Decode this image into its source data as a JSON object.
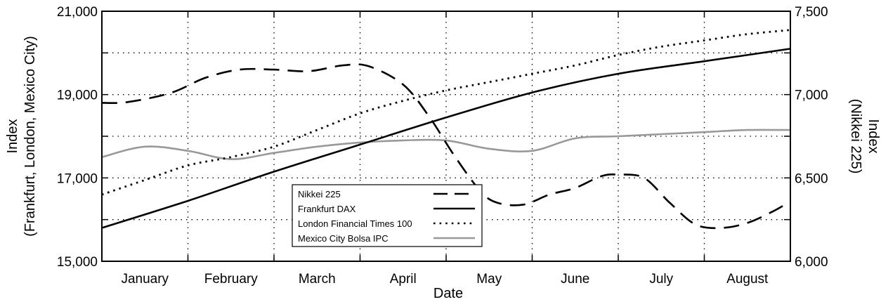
{
  "chart_data": {
    "type": "line",
    "xlabel": "Date",
    "ylabel_left": [
      "Index",
      "(Frankfurt, London, Mexico City)"
    ],
    "ylabel_right": [
      "Index",
      "(Nikkei 225)"
    ],
    "categories": [
      "January",
      "February",
      "March",
      "April",
      "May",
      "June",
      "July",
      "August"
    ],
    "xlim": [
      0,
      8
    ],
    "ylim_left": [
      15000,
      21000
    ],
    "ylim_right": [
      6000,
      7500
    ],
    "yticks_left": [
      "15,000",
      "17,000",
      "19,000",
      "21,000"
    ],
    "yticks_right": [
      "6,000",
      "6,500",
      "7,000",
      "7,500"
    ],
    "yticks_left_values": [
      15000,
      17000,
      19000,
      21000
    ],
    "yticks_right_values": [
      6000,
      6500,
      7000,
      7500
    ],
    "grid": true,
    "legend_position": "bottom-center",
    "series": [
      {
        "name": "Nikkei 225",
        "axis": "right",
        "style": "dashed",
        "color": "#000000",
        "x": [
          0,
          0.3,
          0.8,
          1.2,
          1.6,
          2.0,
          2.4,
          2.8,
          3.1,
          3.5,
          3.8,
          4.1,
          4.4,
          4.6,
          4.9,
          5.2,
          5.5,
          5.8,
          6.0,
          6.3,
          6.6,
          6.9,
          7.2,
          7.5,
          7.8,
          8.0
        ],
        "values": [
          6950,
          6955,
          7010,
          7100,
          7150,
          7150,
          7140,
          7175,
          7170,
          7060,
          6870,
          6630,
          6420,
          6350,
          6340,
          6400,
          6440,
          6510,
          6520,
          6500,
          6350,
          6220,
          6200,
          6230,
          6300,
          6360
        ]
      },
      {
        "name": "Frankfurt DAX",
        "axis": "left",
        "style": "solid",
        "color": "#000000",
        "x": [
          0,
          1,
          2,
          3,
          4,
          5,
          6,
          7,
          8
        ],
        "values": [
          15800,
          16450,
          17150,
          17800,
          18450,
          19050,
          19500,
          19800,
          20100
        ]
      },
      {
        "name": "London Financial Times 100",
        "axis": "left",
        "style": "dotted",
        "color": "#000000",
        "x": [
          0,
          0.5,
          1,
          1.5,
          2,
          2.5,
          3,
          3.5,
          4,
          4.5,
          5,
          5.5,
          6,
          6.5,
          7,
          7.5,
          8
        ],
        "values": [
          16600,
          16950,
          17300,
          17500,
          17750,
          18150,
          18550,
          18850,
          19100,
          19300,
          19500,
          19700,
          19950,
          20150,
          20300,
          20450,
          20550
        ]
      },
      {
        "name": "Mexico City Bolsa IPC",
        "axis": "left",
        "style": "solid",
        "color": "#999999",
        "x": [
          0,
          0.5,
          1,
          1.5,
          2,
          2.5,
          3,
          3.5,
          4,
          4.5,
          5,
          5.5,
          6,
          6.5,
          7,
          7.5,
          8
        ],
        "values": [
          17500,
          17750,
          17650,
          17450,
          17600,
          17750,
          17850,
          17900,
          17900,
          17700,
          17650,
          17950,
          18000,
          18050,
          18100,
          18150,
          18150
        ]
      }
    ]
  }
}
